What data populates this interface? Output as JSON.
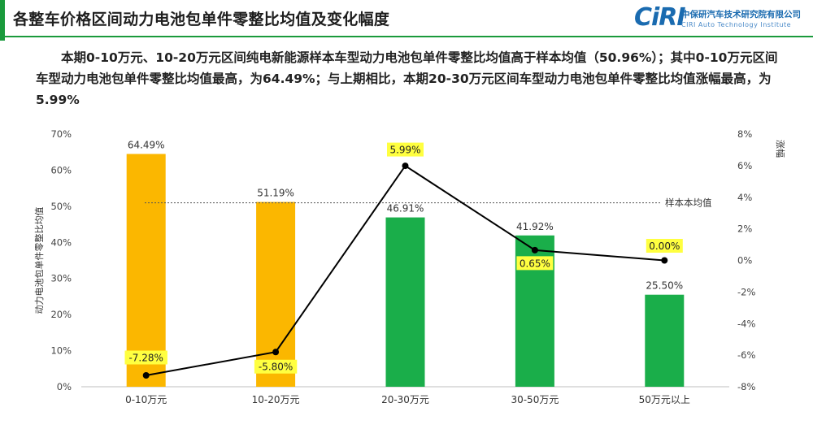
{
  "header": {
    "title": "各整车价格区间动力电池包单件零整比均值及变化幅度"
  },
  "logo": {
    "mark": "CiRI",
    "cn": "中保研汽车技术研究院有限公司",
    "en": "CIRI Auto Technology Institute"
  },
  "summary": "本期0-10万元、10-20万元区间纯电新能源样本车型动力电池包单件零整比均值高于样本均值（50.96%）；其中0-10万元区间车型动力电池包单件零整比均值最高，为64.49%；与上期相比，本期20-30万元区间车型动力电池包单件零整比均值涨幅最高，为5.99%",
  "colors": {
    "accent": "#1a9a3c",
    "bar_above_avg": "#fbb700",
    "bar_below_avg": "#1aae4a",
    "line": "#000000",
    "label_highlight": "#ffff40"
  },
  "chart_data": {
    "type": "bar",
    "categories": [
      "0-10万元",
      "10-20万元",
      "20-30万元",
      "30-50万元",
      "50万元以上"
    ],
    "series": [
      {
        "axis": "left",
        "values": [
          64.49,
          51.19,
          46.91,
          41.92,
          25.5
        ],
        "labels": [
          "64.49%",
          "51.19%",
          "46.91%",
          "41.92%",
          "25.50%"
        ],
        "colors": [
          "#fbb700",
          "#fbb700",
          "#1aae4a",
          "#1aae4a",
          "#1aae4a"
        ]
      },
      {
        "axis": "right",
        "type": "line",
        "values": [
          -7.28,
          -5.8,
          5.99,
          0.65,
          0.0
        ],
        "labels": [
          "-7.28%",
          "-5.80%",
          "5.99%",
          "0.65%",
          "0.00%"
        ]
      }
    ],
    "reference_line": {
      "value": 50.96,
      "label": "样本本均值"
    },
    "ylabel": "动力电池包单件零整比均值",
    "y2label": "涨幅",
    "ylim": [
      0,
      70
    ],
    "y2lim": [
      -8,
      8
    ],
    "yticks": [
      "0%",
      "10%",
      "20%",
      "30%",
      "40%",
      "50%",
      "60%",
      "70%"
    ],
    "y2ticks": [
      "-8%",
      "-6%",
      "-4%",
      "-2%",
      "0%",
      "2%",
      "4%",
      "6%",
      "8%"
    ],
    "grid": false,
    "legend": "none"
  }
}
